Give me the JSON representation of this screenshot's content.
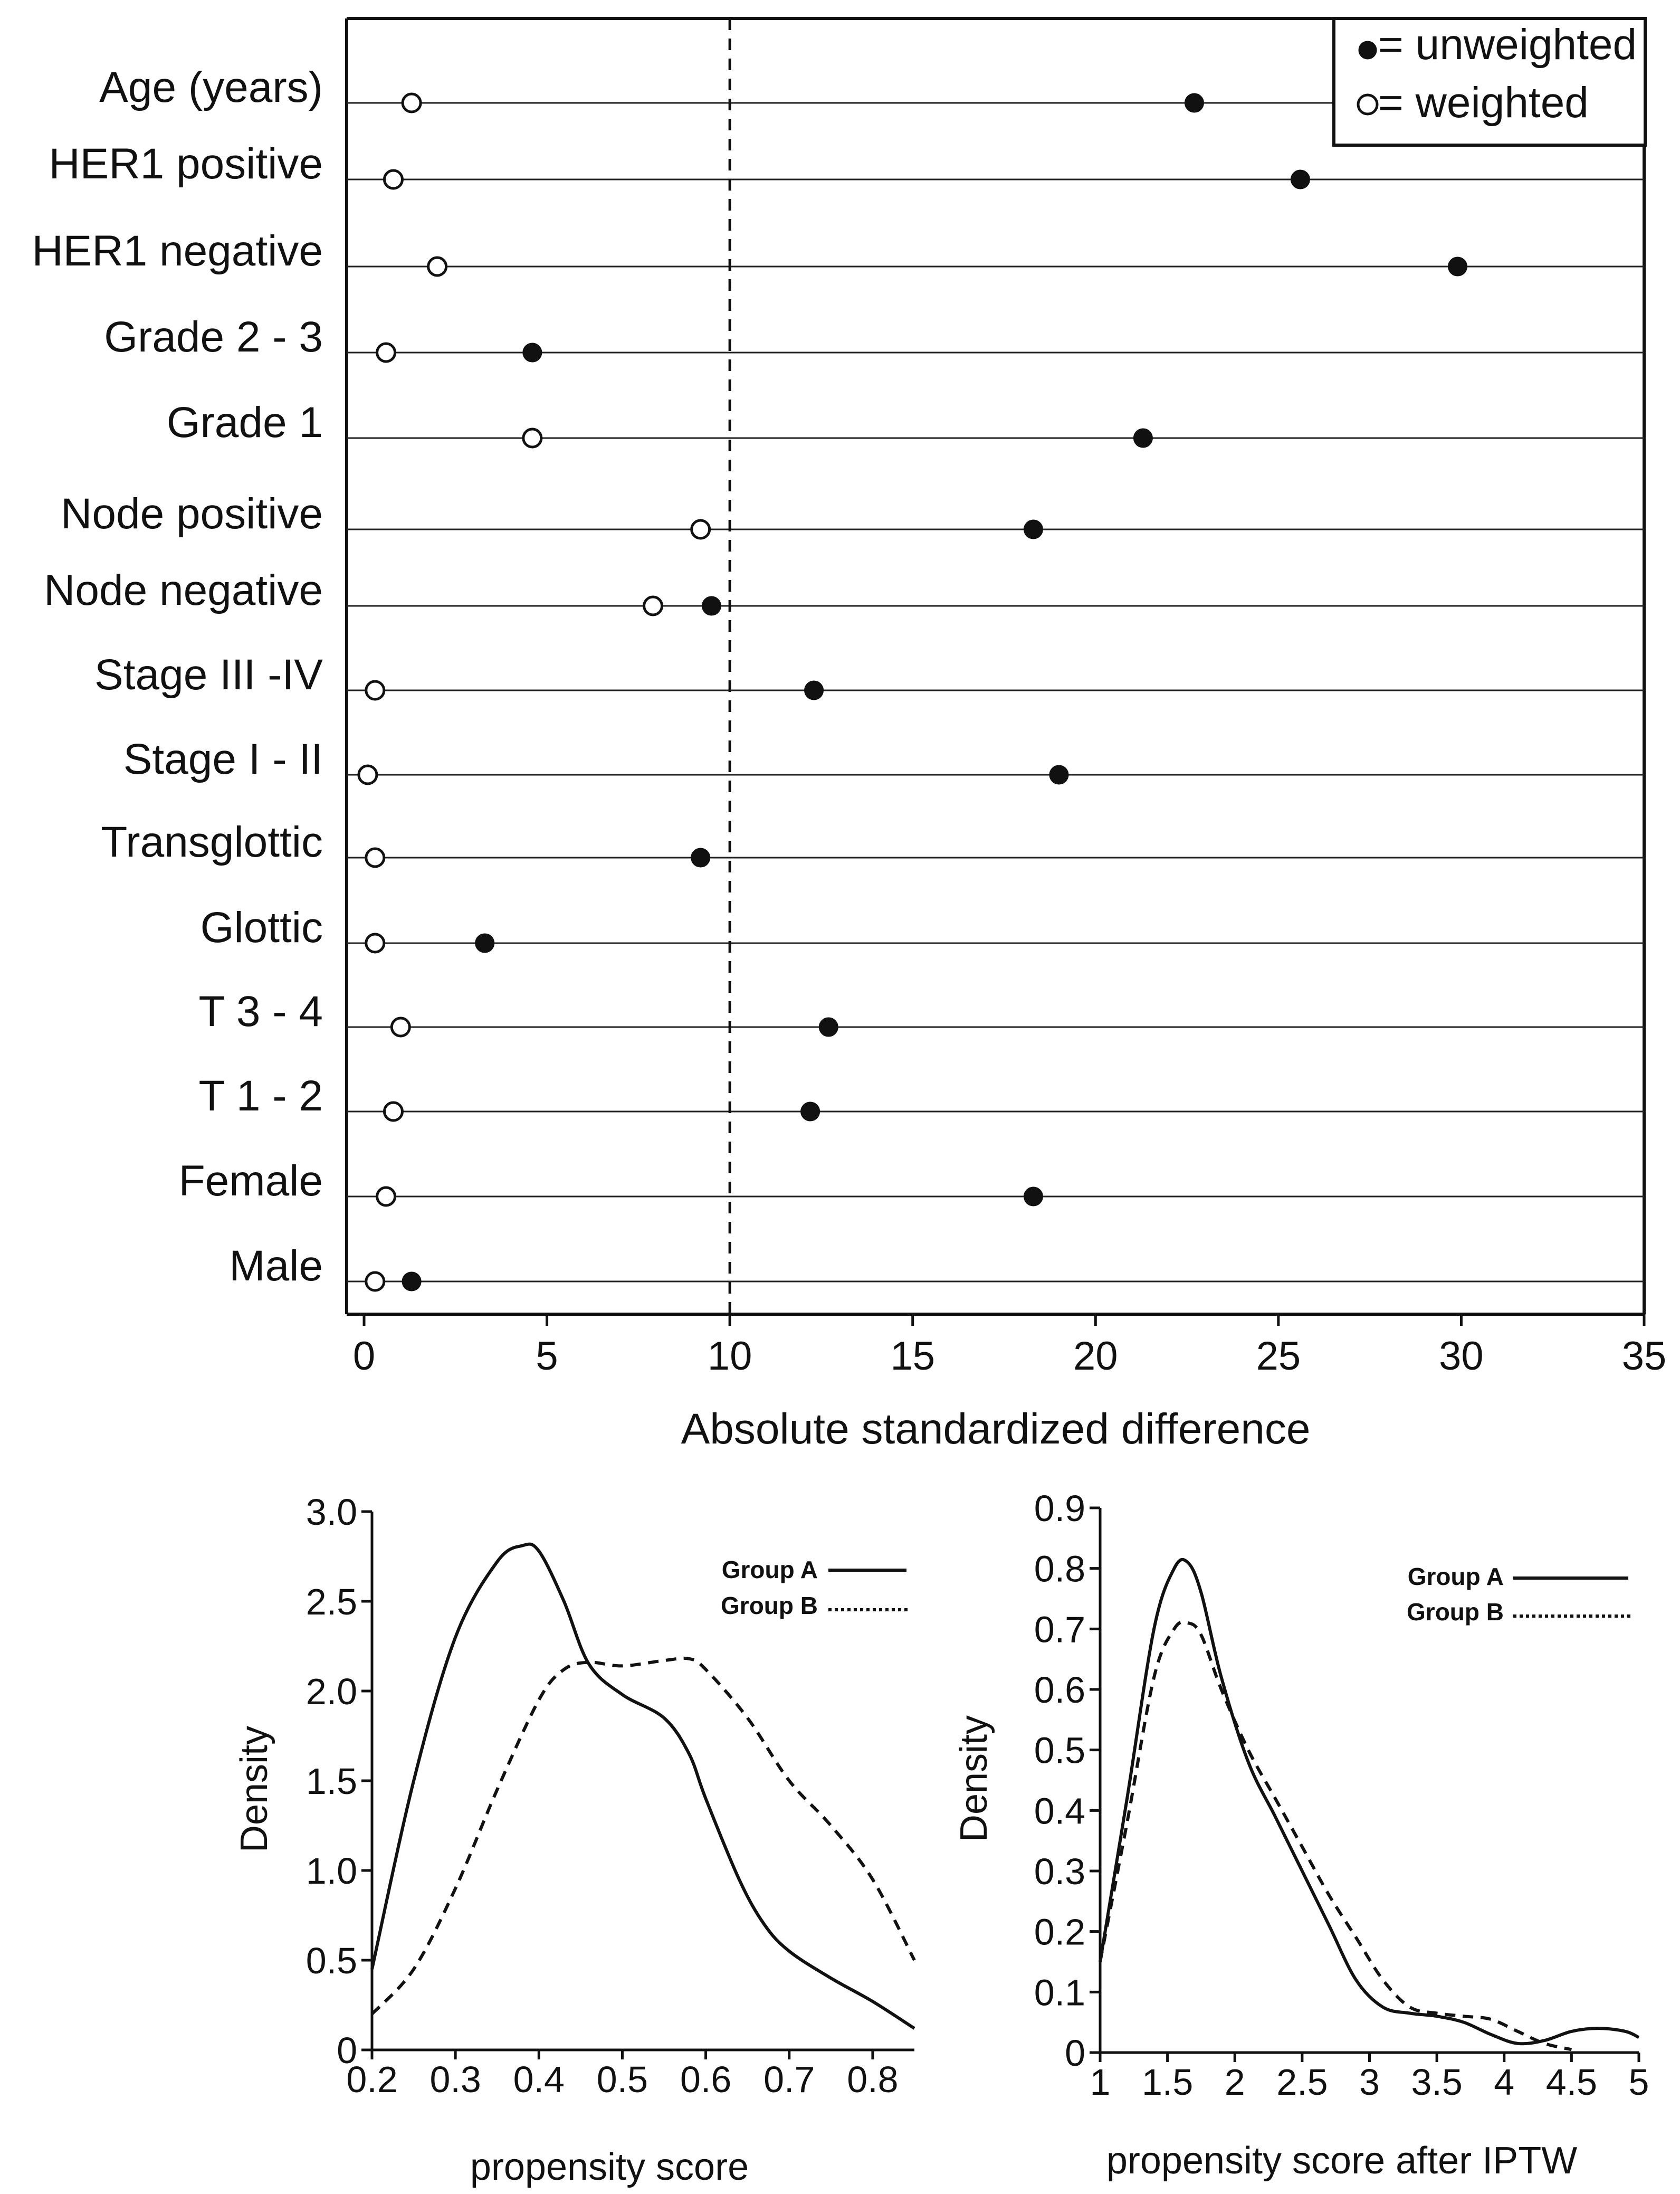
{
  "chart_data": [
    {
      "type": "scatter",
      "subtype": "dot-plot",
      "title": "",
      "xlabel": "Absolute standardized difference",
      "ylabel": "",
      "xlim": [
        0,
        35
      ],
      "xticks": [
        "0",
        "5",
        "10",
        "15",
        "20",
        "25",
        "30",
        "35"
      ],
      "reference_line": {
        "x": 10,
        "style": "dashed"
      },
      "grid": "horizontal row lines",
      "legend": {
        "position": "top-right",
        "entries": [
          {
            "symbol": "filled-circle",
            "label": "= unweighted"
          },
          {
            "symbol": "open-circle",
            "label": "= weighted"
          }
        ]
      },
      "categories": [
        "Age (years)",
        "HER1 positive",
        "HER1 negative",
        "Grade 2 - 3",
        "Grade 1",
        "Node positive",
        "Node negative",
        "Stage III -IV",
        "Stage I - II",
        "Transglottic",
        "Glottic",
        "T 3 - 4",
        "T 1 - 2",
        "Female",
        "Male"
      ],
      "series": [
        {
          "name": "unweighted",
          "marker": "filled",
          "values": [
            22.7,
            25.6,
            29.9,
            4.6,
            21.3,
            18.3,
            9.5,
            12.3,
            19.0,
            9.2,
            3.3,
            12.7,
            12.2,
            18.3,
            1.3
          ]
        },
        {
          "name": "weighted",
          "marker": "open",
          "values": [
            1.3,
            0.8,
            2.0,
            0.6,
            4.6,
            9.2,
            7.9,
            0.3,
            0.1,
            0.3,
            0.3,
            1.0,
            0.8,
            0.6,
            0.3
          ]
        }
      ]
    },
    {
      "type": "line",
      "title": "",
      "xlabel": "propensity score",
      "ylabel": "Density",
      "xlim": [
        0.2,
        0.85
      ],
      "ylim": [
        0,
        3.0
      ],
      "xticks": [
        "0.2",
        "0.3",
        "0.4",
        "0.5",
        "0.6",
        "0.7",
        "0.8"
      ],
      "yticks": [
        "0",
        "0.5",
        "1.0",
        "1.5",
        "2.0",
        "2.5",
        "3.0"
      ],
      "legend": {
        "position": "top-right"
      },
      "series": [
        {
          "name": "Group A",
          "style": "solid",
          "x": [
            0.2,
            0.25,
            0.3,
            0.35,
            0.38,
            0.4,
            0.43,
            0.46,
            0.5,
            0.55,
            0.58,
            0.6,
            0.64,
            0.67,
            0.7,
            0.75,
            0.8,
            0.85
          ],
          "y": [
            0.45,
            1.5,
            2.3,
            2.72,
            2.81,
            2.78,
            2.5,
            2.15,
            1.98,
            1.85,
            1.65,
            1.4,
            0.95,
            0.7,
            0.55,
            0.4,
            0.27,
            0.12
          ]
        },
        {
          "name": "Group B",
          "style": "dashed",
          "x": [
            0.2,
            0.25,
            0.3,
            0.35,
            0.4,
            0.43,
            0.46,
            0.5,
            0.55,
            0.58,
            0.6,
            0.65,
            0.7,
            0.75,
            0.8,
            0.85
          ],
          "y": [
            0.2,
            0.45,
            0.9,
            1.45,
            1.95,
            2.12,
            2.16,
            2.14,
            2.17,
            2.18,
            2.12,
            1.85,
            1.5,
            1.25,
            0.95,
            0.5
          ]
        }
      ]
    },
    {
      "type": "line",
      "title": "",
      "xlabel": "propensity score after IPTW",
      "ylabel": "Density",
      "xlim": [
        1,
        5
      ],
      "ylim": [
        0,
        0.9
      ],
      "xticks": [
        "1",
        "1.5",
        "2",
        "2.5",
        "3",
        "3.5",
        "4",
        "4.5",
        "5"
      ],
      "yticks": [
        "0",
        "0.1",
        "0.2",
        "0.3",
        "0.4",
        "0.5",
        "0.6",
        "0.7",
        "0.8",
        "0.9"
      ],
      "legend": {
        "position": "top-right"
      },
      "series": [
        {
          "name": "Group A",
          "style": "solid",
          "x": [
            1,
            1.2,
            1.4,
            1.55,
            1.65,
            1.75,
            1.9,
            2.1,
            2.3,
            2.5,
            2.7,
            2.9,
            3.1,
            3.3,
            3.5,
            3.7,
            3.9,
            4.1,
            4.3,
            4.5,
            4.7,
            4.9,
            5
          ],
          "y": [
            0.15,
            0.42,
            0.7,
            0.8,
            0.81,
            0.76,
            0.62,
            0.48,
            0.39,
            0.3,
            0.21,
            0.12,
            0.075,
            0.065,
            0.06,
            0.05,
            0.03,
            0.015,
            0.02,
            0.035,
            0.04,
            0.035,
            0.025
          ]
        },
        {
          "name": "Group B",
          "style": "dashed",
          "x": [
            1,
            1.2,
            1.4,
            1.55,
            1.65,
            1.75,
            1.9,
            2.1,
            2.3,
            2.5,
            2.7,
            2.9,
            3.1,
            3.3,
            3.5,
            3.7,
            3.9,
            4.1,
            4.3,
            4.5
          ],
          "y": [
            0.15,
            0.38,
            0.62,
            0.7,
            0.71,
            0.69,
            0.6,
            0.5,
            0.42,
            0.34,
            0.26,
            0.19,
            0.12,
            0.075,
            0.065,
            0.06,
            0.055,
            0.035,
            0.015,
            0.005
          ]
        }
      ]
    }
  ]
}
